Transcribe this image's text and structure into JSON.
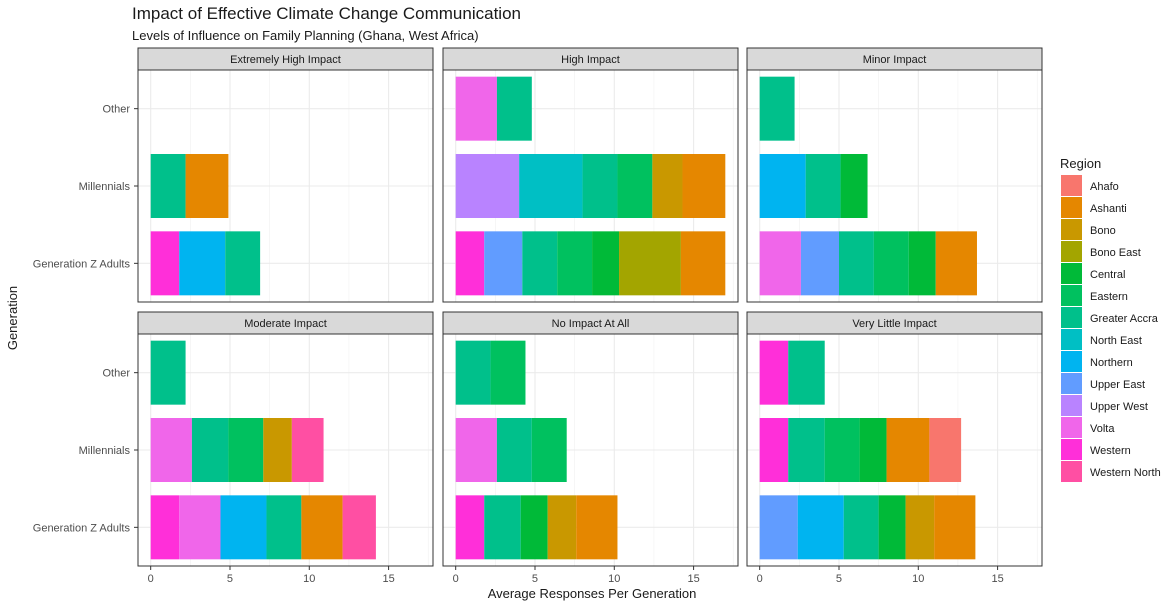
{
  "chart_data": {
    "type": "bar",
    "orientation": "horizontal",
    "stacked": true,
    "title": "Impact of Effective Climate Change Communication",
    "subtitle": "Levels of Influence on Family Planning (Ghana, West Africa)",
    "xlabel": "Average Responses Per Generation",
    "ylabel": "Generation",
    "xlim": [
      -0.8,
      17.8
    ],
    "xticks": [
      0,
      5,
      10,
      15
    ],
    "categories": [
      "Generation Z Adults",
      "Millennials",
      "Other"
    ],
    "grid": true,
    "legend": {
      "title": "Region",
      "position": "right",
      "entries": [
        "Ahafo",
        "Ashanti",
        "Bono",
        "Bono East",
        "Central",
        "Eastern",
        "Greater Accra",
        "North East",
        "Northern",
        "Upper East",
        "Upper West",
        "Volta",
        "Western",
        "Western North"
      ]
    },
    "colors": {
      "Ahafo": "#F8766D",
      "Ashanti": "#E58700",
      "Bono": "#C99800",
      "Bono East": "#A3A500",
      "Central": "#00BA38",
      "Eastern": "#00C15F",
      "Greater Accra": "#00C08B",
      "North East": "#00BFC4",
      "Northern": "#00B4F0",
      "Upper East": "#619CFF",
      "Upper West": "#B983FF",
      "Volta": "#F066EA",
      "Western": "#FF2FD9",
      "Western North": "#FF4FA3"
    },
    "panels": [
      {
        "title": "Extremely High Impact",
        "bars": {
          "Generation Z Adults": [
            {
              "region": "Western",
              "value": 1.8
            },
            {
              "region": "Northern",
              "value": 2.9
            },
            {
              "region": "Greater Accra",
              "value": 2.2
            }
          ],
          "Millennials": [
            {
              "region": "Greater Accra",
              "value": 2.2
            },
            {
              "region": "Ashanti",
              "value": 2.7
            }
          ],
          "Other": []
        }
      },
      {
        "title": "High Impact",
        "bars": {
          "Generation Z Adults": [
            {
              "region": "Western",
              "value": 1.8
            },
            {
              "region": "Upper East",
              "value": 2.4
            },
            {
              "region": "Greater Accra",
              "value": 2.2
            },
            {
              "region": "Eastern",
              "value": 2.2
            },
            {
              "region": "Central",
              "value": 1.7
            },
            {
              "region": "Bono East",
              "value": 3.9
            },
            {
              "region": "Ashanti",
              "value": 2.8
            }
          ],
          "Millennials": [
            {
              "region": "Upper West",
              "value": 4.0
            },
            {
              "region": "North East",
              "value": 4.0
            },
            {
              "region": "Greater Accra",
              "value": 2.2
            },
            {
              "region": "Eastern",
              "value": 2.2
            },
            {
              "region": "Bono",
              "value": 1.9
            },
            {
              "region": "Ashanti",
              "value": 2.7
            }
          ],
          "Other": [
            {
              "region": "Volta",
              "value": 2.6
            },
            {
              "region": "Greater Accra",
              "value": 2.2
            }
          ]
        }
      },
      {
        "title": "Minor Impact",
        "bars": {
          "Generation Z Adults": [
            {
              "region": "Volta",
              "value": 2.6
            },
            {
              "region": "Upper East",
              "value": 2.4
            },
            {
              "region": "Greater Accra",
              "value": 2.2
            },
            {
              "region": "Eastern",
              "value": 2.2
            },
            {
              "region": "Central",
              "value": 1.7
            },
            {
              "region": "Ashanti",
              "value": 2.6
            }
          ],
          "Millennials": [
            {
              "region": "Northern",
              "value": 2.9
            },
            {
              "region": "Greater Accra",
              "value": 2.2
            },
            {
              "region": "Central",
              "value": 1.7
            }
          ],
          "Other": [
            {
              "region": "Greater Accra",
              "value": 2.2
            }
          ]
        }
      },
      {
        "title": "Moderate Impact",
        "bars": {
          "Generation Z Adults": [
            {
              "region": "Western",
              "value": 1.8
            },
            {
              "region": "Volta",
              "value": 2.6
            },
            {
              "region": "Northern",
              "value": 2.9
            },
            {
              "region": "Greater Accra",
              "value": 2.2
            },
            {
              "region": "Ashanti",
              "value": 2.6
            },
            {
              "region": "Western North",
              "value": 2.1
            }
          ],
          "Millennials": [
            {
              "region": "Volta",
              "value": 2.6
            },
            {
              "region": "Greater Accra",
              "value": 2.3
            },
            {
              "region": "Eastern",
              "value": 2.2
            },
            {
              "region": "Bono",
              "value": 1.8
            },
            {
              "region": "Western North",
              "value": 2.0
            }
          ],
          "Other": [
            {
              "region": "Greater Accra",
              "value": 2.2
            }
          ]
        }
      },
      {
        "title": "No Impact At All",
        "bars": {
          "Generation Z Adults": [
            {
              "region": "Western",
              "value": 1.8
            },
            {
              "region": "Greater Accra",
              "value": 2.3
            },
            {
              "region": "Central",
              "value": 1.7
            },
            {
              "region": "Bono",
              "value": 1.8
            },
            {
              "region": "Ashanti",
              "value": 2.6
            }
          ],
          "Millennials": [
            {
              "region": "Volta",
              "value": 2.6
            },
            {
              "region": "Greater Accra",
              "value": 2.2
            },
            {
              "region": "Eastern",
              "value": 2.2
            }
          ],
          "Other": [
            {
              "region": "Greater Accra",
              "value": 2.2
            },
            {
              "region": "Eastern",
              "value": 2.2
            }
          ]
        }
      },
      {
        "title": "Very Little Impact",
        "bars": {
          "Generation Z Adults": [
            {
              "region": "Upper East",
              "value": 2.4
            },
            {
              "region": "Northern",
              "value": 2.9
            },
            {
              "region": "Greater Accra",
              "value": 2.2
            },
            {
              "region": "Central",
              "value": 1.7
            },
            {
              "region": "Bono",
              "value": 1.8
            },
            {
              "region": "Ashanti",
              "value": 2.6
            }
          ],
          "Millennials": [
            {
              "region": "Western",
              "value": 1.8
            },
            {
              "region": "Greater Accra",
              "value": 2.3
            },
            {
              "region": "Eastern",
              "value": 2.2
            },
            {
              "region": "Central",
              "value": 1.7
            },
            {
              "region": "Ashanti",
              "value": 2.7
            },
            {
              "region": "Ahafo",
              "value": 2.0
            }
          ],
          "Other": [
            {
              "region": "Western",
              "value": 1.8
            },
            {
              "region": "Greater Accra",
              "value": 2.3
            }
          ]
        }
      }
    ]
  }
}
